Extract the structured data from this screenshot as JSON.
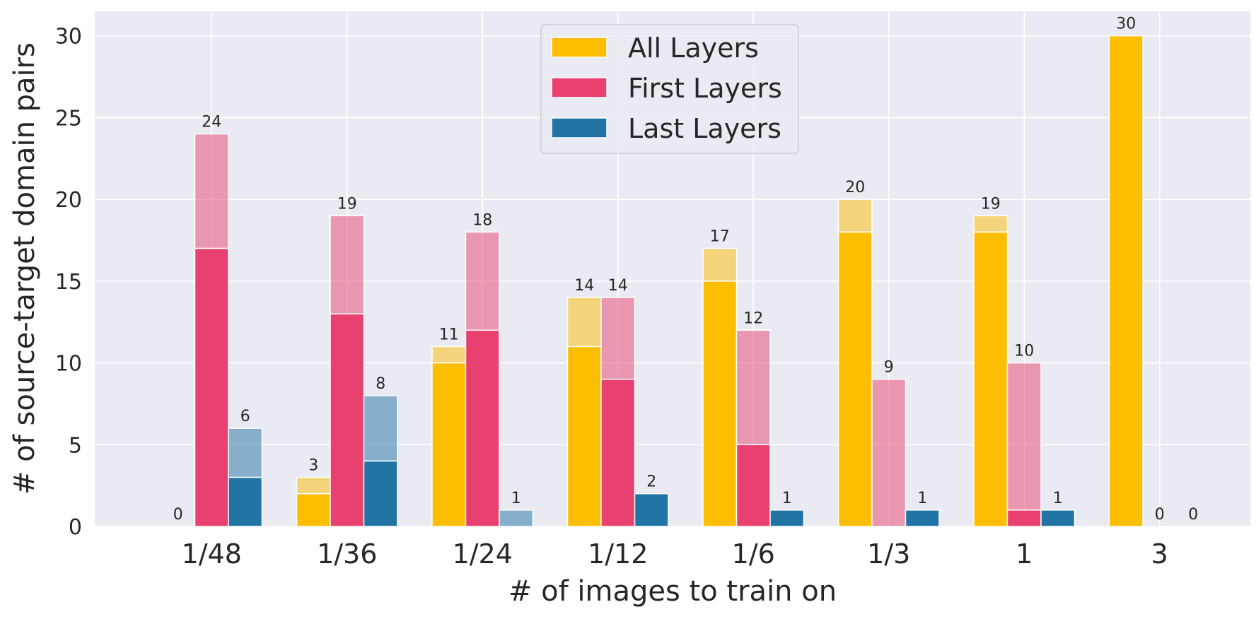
{
  "chart_data": {
    "type": "bar",
    "style": "grouped stacked (solid lower segment, translucent upper segment)",
    "categories": [
      "1/48",
      "1/36",
      "1/24",
      "1/12",
      "1/6",
      "1/3",
      "1",
      "3"
    ],
    "xlabel": "# of images to train on",
    "ylabel": "# of source-target domain pairs",
    "ylim": [
      0,
      31.5
    ],
    "yticks": [
      0,
      5,
      10,
      15,
      20,
      25,
      30
    ],
    "grid": true,
    "legend_position": "top-center",
    "series": [
      {
        "name": "All Layers",
        "color": "#FDBE02",
        "solid": [
          0,
          2,
          10,
          11,
          15,
          18,
          18,
          30
        ],
        "total": [
          0,
          3,
          11,
          14,
          17,
          20,
          19,
          30
        ]
      },
      {
        "name": "First Layers",
        "color": "#E8416F",
        "solid": [
          17,
          13,
          12,
          9,
          5,
          0,
          1,
          0
        ],
        "total": [
          24,
          19,
          18,
          14,
          12,
          9,
          10,
          0
        ]
      },
      {
        "name": "Last Layers",
        "color": "#2274A5",
        "solid": [
          3,
          4,
          0,
          2,
          1,
          1,
          1,
          0
        ],
        "total": [
          6,
          8,
          1,
          2,
          1,
          1,
          1,
          0
        ]
      }
    ]
  }
}
